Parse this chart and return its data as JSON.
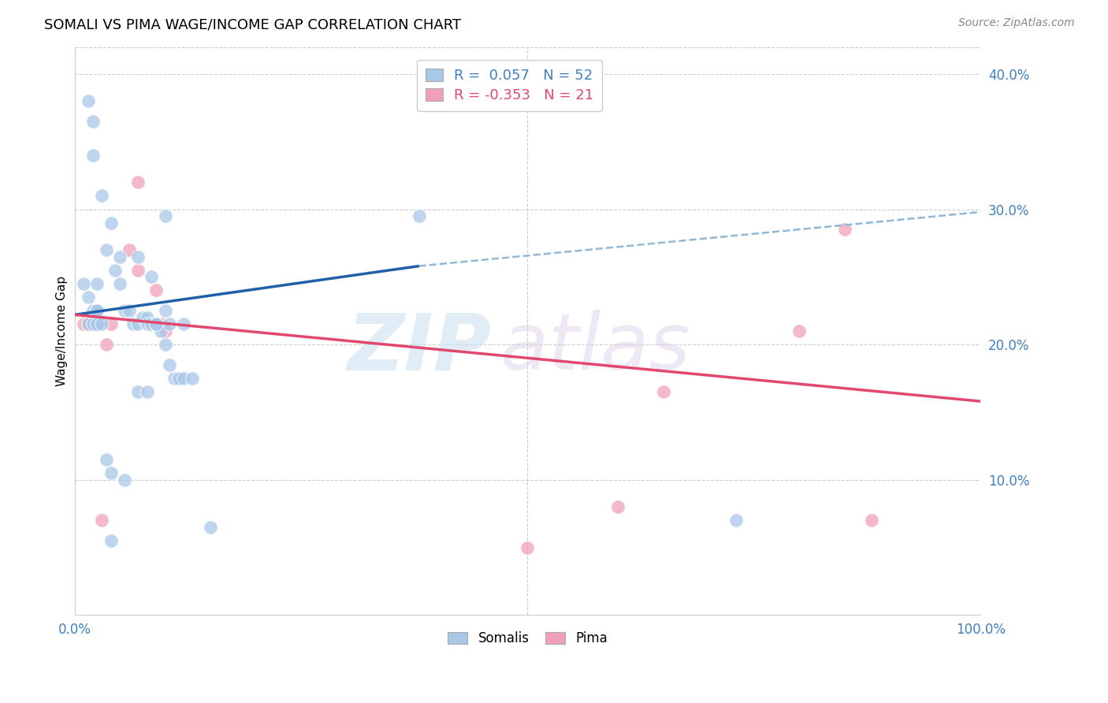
{
  "title": "SOMALI VS PIMA WAGE/INCOME GAP CORRELATION CHART",
  "source": "Source: ZipAtlas.com",
  "ylabel": "Wage/Income Gap",
  "xlim": [
    0.0,
    1.0
  ],
  "ylim": [
    0.0,
    0.42
  ],
  "yticks": [
    0.1,
    0.2,
    0.3,
    0.4
  ],
  "ytick_labels": [
    "10.0%",
    "20.0%",
    "30.0%",
    "40.0%"
  ],
  "background_color": "#ffffff",
  "grid_color": "#c8c8c8",
  "somali_color": "#a8c8e8",
  "pima_color": "#f0a0b8",
  "somali_line_color": "#2060a8",
  "pima_line_color": "#e04870",
  "somali_dash_color": "#90b8d8",
  "legend_R_somali": "0.057",
  "legend_N_somali": "52",
  "legend_R_pima": "-0.353",
  "legend_N_pima": "21",
  "somali_line_x0": 0.0,
  "somali_line_y0": 0.222,
  "somali_line_x_solid_end": 0.38,
  "somali_line_y_solid_end": 0.258,
  "somali_line_x1": 1.0,
  "somali_line_y1": 0.298,
  "pima_line_x0": 0.0,
  "pima_line_y0": 0.222,
  "pima_line_x1": 1.0,
  "pima_line_y1": 0.158,
  "somali_x": [
    0.01,
    0.02,
    0.015,
    0.025,
    0.015,
    0.02,
    0.02,
    0.025,
    0.025,
    0.03,
    0.04,
    0.035,
    0.045,
    0.05,
    0.05,
    0.055,
    0.06,
    0.065,
    0.07,
    0.07,
    0.075,
    0.08,
    0.08,
    0.085,
    0.085,
    0.09,
    0.09,
    0.095,
    0.1,
    0.1,
    0.105,
    0.105,
    0.11,
    0.115,
    0.12,
    0.12,
    0.13,
    0.07,
    0.08,
    0.09,
    0.035,
    0.04,
    0.04,
    0.055,
    0.1,
    0.38,
    0.015,
    0.02,
    0.025,
    0.03,
    0.15,
    0.73
  ],
  "somali_y": [
    0.245,
    0.225,
    0.235,
    0.225,
    0.38,
    0.365,
    0.34,
    0.245,
    0.225,
    0.31,
    0.29,
    0.27,
    0.255,
    0.265,
    0.245,
    0.225,
    0.225,
    0.215,
    0.265,
    0.215,
    0.22,
    0.22,
    0.215,
    0.215,
    0.25,
    0.215,
    0.215,
    0.21,
    0.225,
    0.2,
    0.185,
    0.215,
    0.175,
    0.175,
    0.175,
    0.215,
    0.175,
    0.165,
    0.165,
    0.215,
    0.115,
    0.105,
    0.055,
    0.1,
    0.295,
    0.295,
    0.215,
    0.215,
    0.215,
    0.215,
    0.065,
    0.07
  ],
  "pima_x": [
    0.01,
    0.015,
    0.02,
    0.025,
    0.025,
    0.03,
    0.04,
    0.06,
    0.07,
    0.07,
    0.085,
    0.09,
    0.095,
    0.1,
    0.035,
    0.5,
    0.6,
    0.65,
    0.8,
    0.85,
    0.88
  ],
  "pima_y": [
    0.215,
    0.215,
    0.215,
    0.215,
    0.215,
    0.07,
    0.215,
    0.27,
    0.255,
    0.32,
    0.215,
    0.24,
    0.215,
    0.21,
    0.2,
    0.05,
    0.08,
    0.165,
    0.21,
    0.285,
    0.07
  ]
}
